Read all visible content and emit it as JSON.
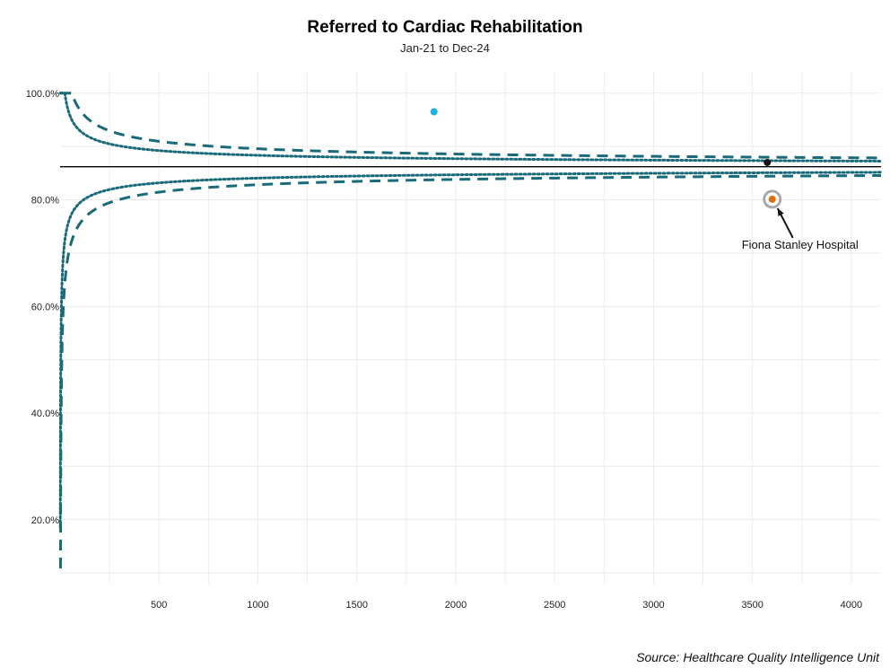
{
  "chart_data": {
    "type": "scatter",
    "title": "Referred to Cardiac Rehabilitation",
    "subtitle": "Jan-21 to Dec-24",
    "xlabel": "",
    "ylabel": "",
    "xlim": [
      0,
      4150
    ],
    "ylim": [
      8,
      104
    ],
    "x_ticks": [
      500,
      1000,
      1500,
      2000,
      2500,
      3000,
      3500,
      4000
    ],
    "y_ticks": [
      20,
      40,
      60,
      80,
      100
    ],
    "y_tick_labels": [
      "20.0%",
      "40.0%",
      "60.0%",
      "80.0%",
      "100.0%"
    ],
    "grid": true,
    "target_line": 86.2,
    "control_limits": {
      "mean": 86.2,
      "inner_z": 1.96,
      "outer_z": 3.09
    },
    "points": [
      {
        "x": 1890,
        "y": 96.5,
        "color": "#1ab0e6"
      },
      {
        "x": 3575,
        "y": 87.0,
        "color": "#111111"
      },
      {
        "x": 3600,
        "y": 80.1,
        "color": "#e06d10",
        "highlight": true
      }
    ],
    "annotations": [
      {
        "text": "Fiona Stanley Hospital",
        "x": 3600,
        "y": 80.1
      }
    ],
    "colors": {
      "limit": "#1a6b7a",
      "target": "#000000",
      "grid": "#ececec",
      "highlight_ring": "#a8a8a8"
    }
  },
  "source": "Source: Healthcare Quality Intelligence Unit"
}
